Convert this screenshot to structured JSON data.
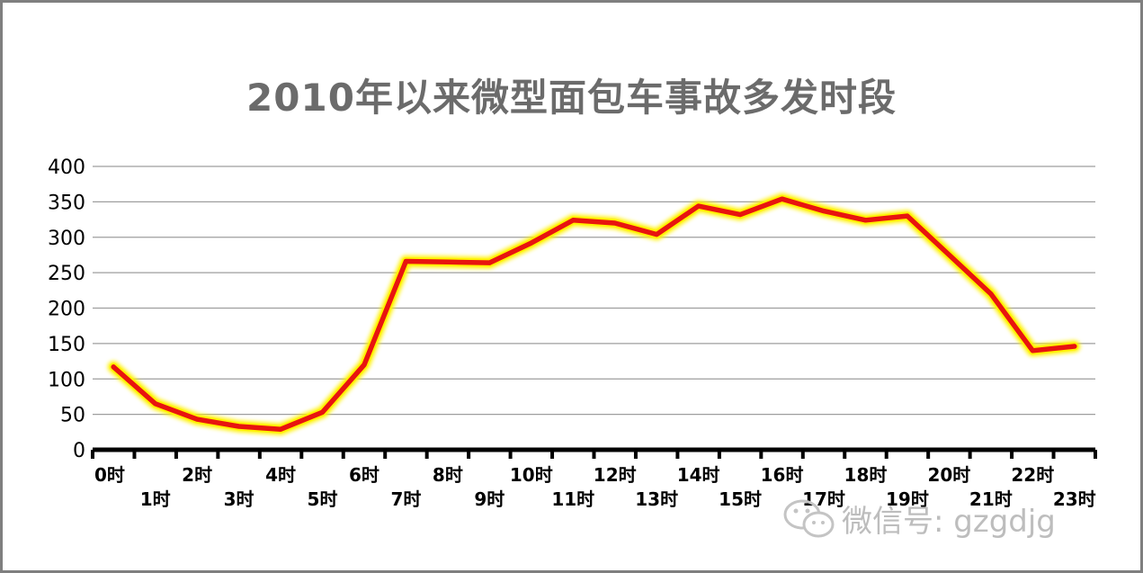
{
  "title": "2010年以来微型面包车事故多发时段",
  "watermark": {
    "text": "微信号: gzgdjg",
    "icon": "wechat-icon"
  },
  "colors": {
    "line": "#e8140f",
    "glow": "#fff200",
    "grid": "#9e9e9e",
    "axis": "#000000",
    "title": "#6b6b6b"
  },
  "chart_data": {
    "type": "line",
    "title": "2010年以来微型面包车事故多发时段",
    "xlabel": "",
    "ylabel": "",
    "ylim": [
      0,
      400
    ],
    "yticks": [
      0,
      50,
      100,
      150,
      200,
      250,
      300,
      350,
      400
    ],
    "grid": true,
    "legend": "none",
    "categories": [
      "0时",
      "1时",
      "2时",
      "3时",
      "4时",
      "5时",
      "6时",
      "7时",
      "8时",
      "9时",
      "10时",
      "11时",
      "12时",
      "13时",
      "14时",
      "15时",
      "16时",
      "17时",
      "18时",
      "19时",
      "20时",
      "21时",
      "22时",
      "23时"
    ],
    "values": [
      117,
      65,
      43,
      33,
      29,
      53,
      120,
      266,
      265,
      264,
      292,
      324,
      320,
      304,
      344,
      332,
      354,
      337,
      324,
      330,
      275,
      220,
      140,
      146
    ]
  }
}
